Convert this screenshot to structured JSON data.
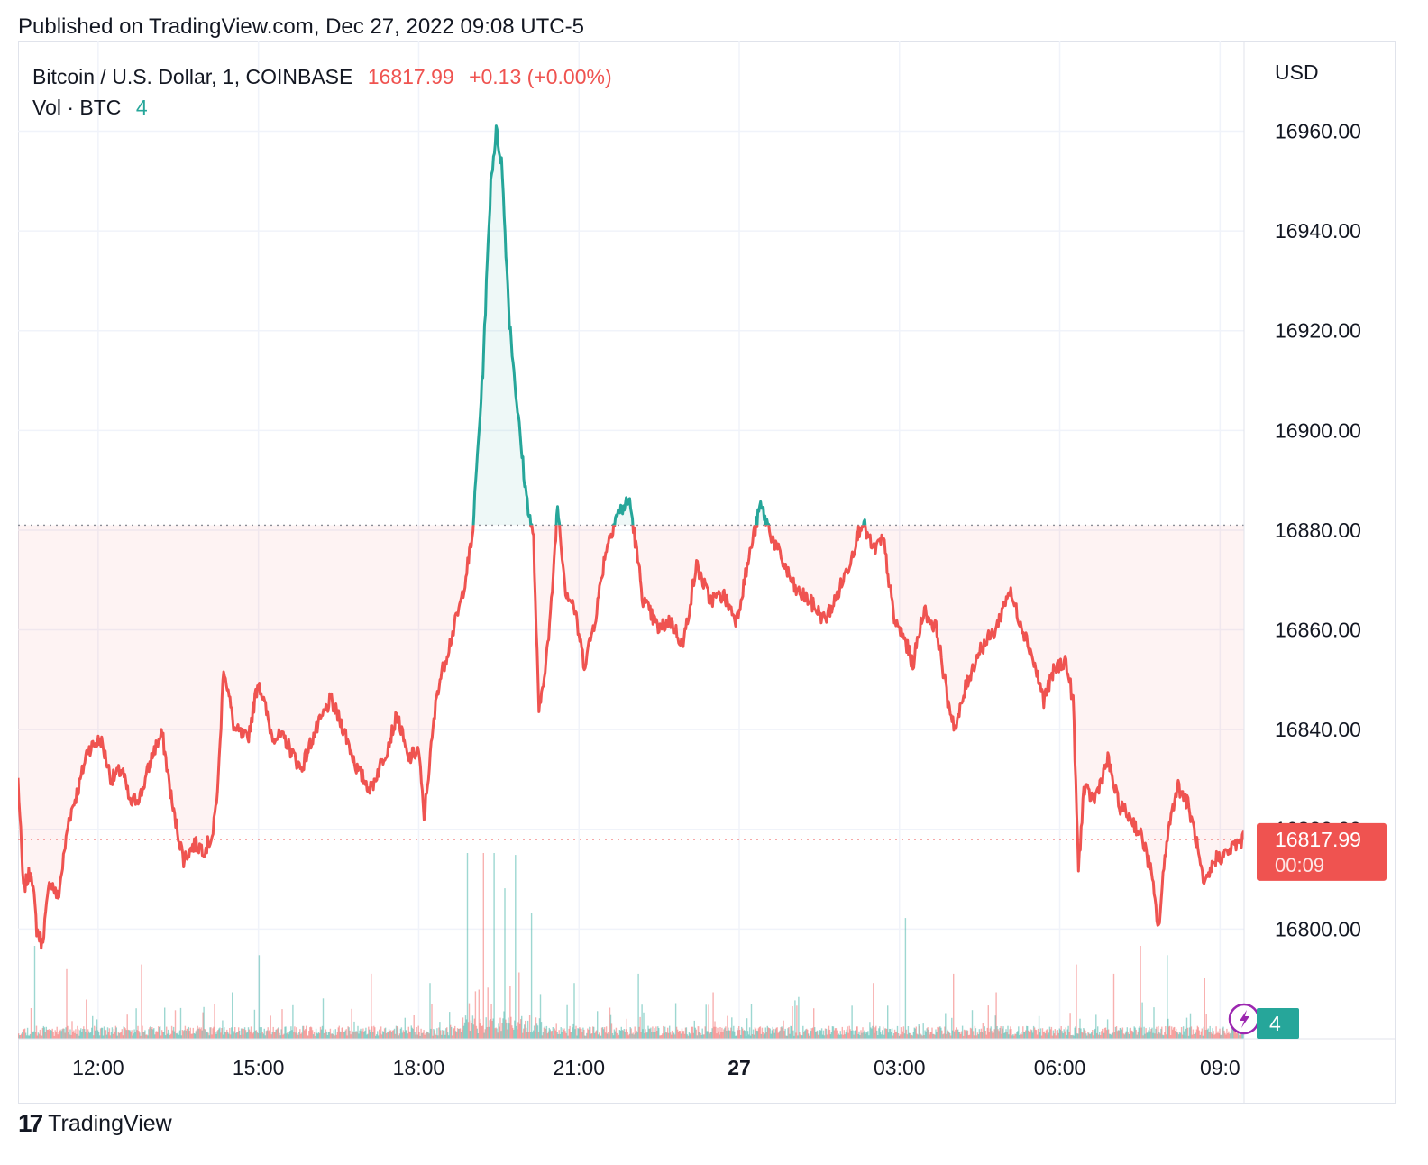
{
  "header": {
    "published": "Published on TradingView.com, Dec 27, 2022 09:08 UTC-5"
  },
  "legend": {
    "symbol": "Bitcoin / U.S. Dollar, 1, COINBASE",
    "last": "16817.99",
    "change": "+0.13 (+0.00%)",
    "vol_label": "Vol · BTC",
    "vol_value": "4"
  },
  "price_tag": {
    "price": "16817.99",
    "countdown": "00:09"
  },
  "vol_tag": "4",
  "footer": {
    "logo": "17",
    "brand": "TradingView"
  },
  "colors": {
    "up": "#26a69a",
    "down": "#ef5350",
    "grid": "#f0f3fa",
    "text": "#131722"
  },
  "chart_data": {
    "type": "area",
    "currency": "USD",
    "baseline": 16881,
    "last_price": 16817.99,
    "ylim": [
      16778,
      16978
    ],
    "y_ticks": [
      16960,
      16940,
      16920,
      16900,
      16880,
      16860,
      16840,
      16820,
      16800
    ],
    "x_ticks": [
      {
        "label": "12:00",
        "t": 1.5
      },
      {
        "label": "15:00",
        "t": 4.5
      },
      {
        "label": "18:00",
        "t": 7.5
      },
      {
        "label": "21:00",
        "t": 10.5
      },
      {
        "label": "27",
        "t": 13.5,
        "bold": true
      },
      {
        "label": "03:00",
        "t": 16.5
      },
      {
        "label": "06:00",
        "t": 19.5
      },
      {
        "label": "09:0",
        "t": 22.5
      }
    ],
    "x_range_hours": [
      0,
      22.95
    ],
    "price_path": [
      [
        0.0,
        16830
      ],
      [
        0.1,
        16808
      ],
      [
        0.25,
        16812
      ],
      [
        0.35,
        16800
      ],
      [
        0.45,
        16797
      ],
      [
        0.6,
        16810
      ],
      [
        0.75,
        16806
      ],
      [
        0.95,
        16822
      ],
      [
        1.15,
        16829
      ],
      [
        1.3,
        16836
      ],
      [
        1.55,
        16838
      ],
      [
        1.75,
        16830
      ],
      [
        1.95,
        16832
      ],
      [
        2.1,
        16825
      ],
      [
        2.3,
        16827
      ],
      [
        2.55,
        16836
      ],
      [
        2.7,
        16839
      ],
      [
        2.9,
        16824
      ],
      [
        3.1,
        16814
      ],
      [
        3.3,
        16817
      ],
      [
        3.5,
        16816
      ],
      [
        3.65,
        16819
      ],
      [
        3.75,
        16830
      ],
      [
        3.85,
        16853
      ],
      [
        4.05,
        16840
      ],
      [
        4.3,
        16838
      ],
      [
        4.5,
        16850
      ],
      [
        4.75,
        16839
      ],
      [
        5.0,
        16838
      ],
      [
        5.3,
        16832
      ],
      [
        5.5,
        16838
      ],
      [
        5.85,
        16846
      ],
      [
        6.1,
        16840
      ],
      [
        6.35,
        16832
      ],
      [
        6.6,
        16828
      ],
      [
        6.9,
        16836
      ],
      [
        7.1,
        16843
      ],
      [
        7.3,
        16834
      ],
      [
        7.5,
        16836
      ],
      [
        7.6,
        16822
      ],
      [
        7.7,
        16833
      ],
      [
        7.85,
        16848
      ],
      [
        8.05,
        16856
      ],
      [
        8.3,
        16866
      ],
      [
        8.5,
        16878
      ],
      [
        8.7,
        16912
      ],
      [
        8.85,
        16950
      ],
      [
        8.95,
        16960
      ],
      [
        9.05,
        16954
      ],
      [
        9.2,
        16922
      ],
      [
        9.35,
        16904
      ],
      [
        9.5,
        16888
      ],
      [
        9.65,
        16878
      ],
      [
        9.75,
        16843
      ],
      [
        9.95,
        16860
      ],
      [
        10.1,
        16885
      ],
      [
        10.25,
        16868
      ],
      [
        10.4,
        16865
      ],
      [
        10.6,
        16853
      ],
      [
        10.8,
        16862
      ],
      [
        11.0,
        16876
      ],
      [
        11.2,
        16883
      ],
      [
        11.45,
        16886
      ],
      [
        11.7,
        16866
      ],
      [
        12.0,
        16860
      ],
      [
        12.2,
        16862
      ],
      [
        12.45,
        16857
      ],
      [
        12.7,
        16873
      ],
      [
        12.95,
        16866
      ],
      [
        13.2,
        16867
      ],
      [
        13.45,
        16862
      ],
      [
        13.75,
        16878
      ],
      [
        13.9,
        16885
      ],
      [
        14.1,
        16879
      ],
      [
        14.3,
        16874
      ],
      [
        14.55,
        16868
      ],
      [
        14.8,
        16866
      ],
      [
        15.1,
        16862
      ],
      [
        15.3,
        16866
      ],
      [
        15.55,
        16873
      ],
      [
        15.8,
        16882
      ],
      [
        16.0,
        16876
      ],
      [
        16.2,
        16878
      ],
      [
        16.4,
        16862
      ],
      [
        16.6,
        16858
      ],
      [
        16.75,
        16853
      ],
      [
        16.95,
        16864
      ],
      [
        17.2,
        16860
      ],
      [
        17.4,
        16846
      ],
      [
        17.55,
        16840
      ],
      [
        17.75,
        16849
      ],
      [
        18.0,
        16856
      ],
      [
        18.3,
        16860
      ],
      [
        18.55,
        16868
      ],
      [
        18.75,
        16862
      ],
      [
        18.95,
        16856
      ],
      [
        19.2,
        16846
      ],
      [
        19.4,
        16852
      ],
      [
        19.6,
        16854
      ],
      [
        19.75,
        16846
      ],
      [
        19.85,
        16812
      ],
      [
        19.95,
        16828
      ],
      [
        20.15,
        16826
      ],
      [
        20.4,
        16834
      ],
      [
        20.6,
        16825
      ],
      [
        20.85,
        16822
      ],
      [
        21.05,
        16818
      ],
      [
        21.2,
        16812
      ],
      [
        21.35,
        16800
      ],
      [
        21.5,
        16818
      ],
      [
        21.7,
        16829
      ],
      [
        21.9,
        16825
      ],
      [
        22.05,
        16818
      ],
      [
        22.2,
        16808
      ],
      [
        22.4,
        16814
      ],
      [
        22.6,
        16815
      ],
      [
        22.8,
        16817
      ],
      [
        22.95,
        16818
      ]
    ],
    "volume_scale_max": 40,
    "volume_spikes": [
      [
        0.3,
        20
      ],
      [
        0.9,
        15
      ],
      [
        2.3,
        16
      ],
      [
        4.0,
        10
      ],
      [
        4.5,
        18
      ],
      [
        6.6,
        14
      ],
      [
        7.7,
        12
      ],
      [
        8.4,
        25
      ],
      [
        8.7,
        23
      ],
      [
        8.9,
        36
      ],
      [
        9.1,
        18
      ],
      [
        9.3,
        22
      ],
      [
        9.6,
        15
      ],
      [
        10.4,
        12
      ],
      [
        11.6,
        14
      ],
      [
        13.0,
        10
      ],
      [
        14.6,
        9
      ],
      [
        16.0,
        12
      ],
      [
        16.6,
        26
      ],
      [
        17.5,
        14
      ],
      [
        18.3,
        10
      ],
      [
        19.8,
        16
      ],
      [
        20.5,
        14
      ],
      [
        21.0,
        20
      ],
      [
        21.5,
        18
      ],
      [
        22.2,
        13
      ]
    ]
  }
}
